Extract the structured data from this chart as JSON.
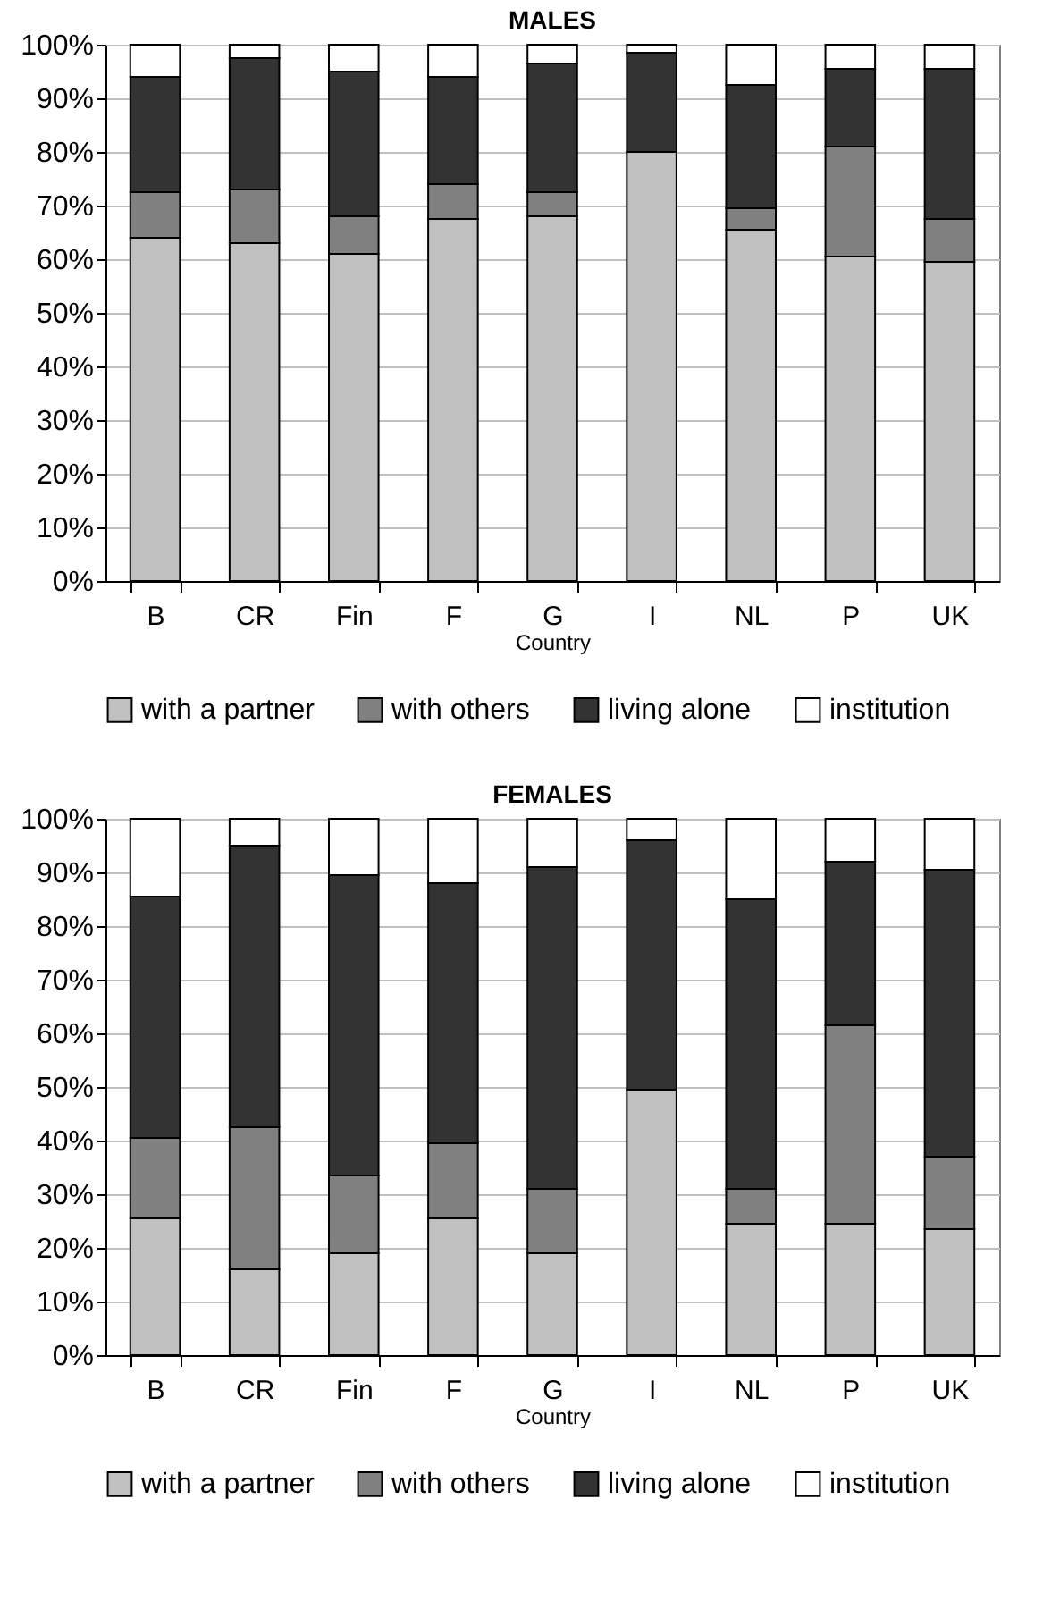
{
  "chart_data": [
    {
      "type": "bar",
      "stacked": true,
      "title": "MALES",
      "xlabel": "Country",
      "categories": [
        "B",
        "CR",
        "Fin",
        "F",
        "G",
        "I",
        "NL",
        "P",
        "UK"
      ],
      "series": [
        {
          "name": "with a partner",
          "color": "#c0c0c0",
          "values": [
            64,
            63,
            61,
            67.5,
            68,
            80,
            65.5,
            60.5,
            59.5
          ]
        },
        {
          "name": "with others",
          "color": "#808080",
          "values": [
            8.5,
            10,
            7,
            6.5,
            4.5,
            0,
            4,
            20.5,
            8
          ]
        },
        {
          "name": "living alone",
          "color": "#333333",
          "values": [
            21.5,
            24.5,
            27,
            20,
            24,
            18.5,
            23,
            14.5,
            28
          ]
        },
        {
          "name": "institution",
          "color": "#ffffff",
          "values": [
            6,
            2.5,
            5,
            6,
            3.5,
            1.5,
            7.5,
            4.5,
            4.5
          ]
        }
      ],
      "ylim": [
        0,
        100
      ],
      "yticks": [
        {
          "value": 0,
          "label": "0%"
        },
        {
          "value": 10,
          "label": "10%"
        },
        {
          "value": 20,
          "label": "20%"
        },
        {
          "value": 30,
          "label": "30%"
        },
        {
          "value": 40,
          "label": "40%"
        },
        {
          "value": 50,
          "label": "50%"
        },
        {
          "value": 60,
          "label": "60%"
        },
        {
          "value": 70,
          "label": "70%"
        },
        {
          "value": 80,
          "label": "80%"
        },
        {
          "value": 90,
          "label": "90%"
        },
        {
          "value": 100,
          "label": "100%"
        }
      ],
      "grid": "y",
      "legend": "bottom"
    },
    {
      "type": "bar",
      "stacked": true,
      "title": "FEMALES",
      "xlabel": "Country",
      "categories": [
        "B",
        "CR",
        "Fin",
        "F",
        "G",
        "I",
        "NL",
        "P",
        "UK"
      ],
      "series": [
        {
          "name": "with a partner",
          "color": "#c0c0c0",
          "values": [
            25.5,
            16,
            19,
            25.5,
            19,
            49.5,
            24.5,
            24.5,
            23.5
          ]
        },
        {
          "name": "with others",
          "color": "#808080",
          "values": [
            15,
            26.5,
            14.5,
            14,
            12,
            0,
            6.5,
            37,
            13.5
          ]
        },
        {
          "name": "living alone",
          "color": "#333333",
          "values": [
            45,
            52.5,
            56,
            48.5,
            60,
            46.5,
            54,
            30.5,
            53.5
          ]
        },
        {
          "name": "institution",
          "color": "#ffffff",
          "values": [
            14.5,
            5,
            10.5,
            12,
            9,
            4,
            15,
            8,
            9.5
          ]
        }
      ],
      "ylim": [
        0,
        100
      ],
      "yticks": [
        {
          "value": 0,
          "label": "0%"
        },
        {
          "value": 10,
          "label": "10%"
        },
        {
          "value": 20,
          "label": "20%"
        },
        {
          "value": 30,
          "label": "30%"
        },
        {
          "value": 40,
          "label": "40%"
        },
        {
          "value": 50,
          "label": "50%"
        },
        {
          "value": 60,
          "label": "60%"
        },
        {
          "value": 70,
          "label": "70%"
        },
        {
          "value": 80,
          "label": "80%"
        },
        {
          "value": 90,
          "label": "90%"
        },
        {
          "value": 100,
          "label": "100%"
        }
      ],
      "grid": "y",
      "legend": "bottom"
    }
  ]
}
